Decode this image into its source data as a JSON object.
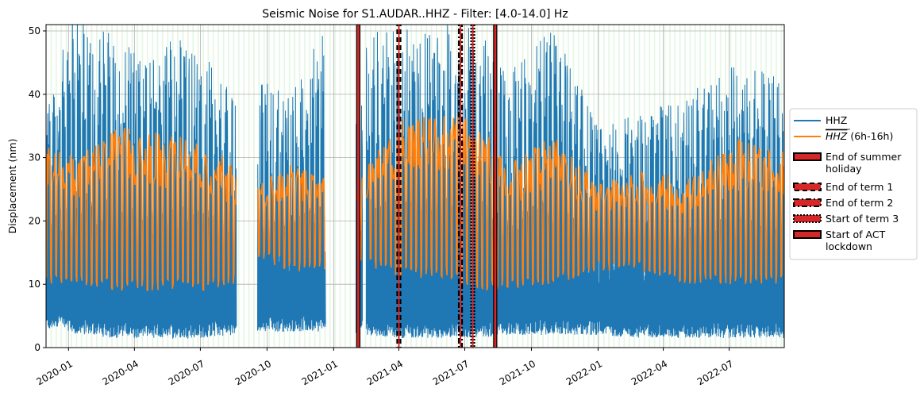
{
  "chart_data": {
    "type": "line",
    "title": "Seismic Noise for S1.AUDAR..HHZ - Filter: [4.0-14.0] Hz",
    "xlabel": "",
    "ylabel": "Displacement (nm)",
    "xlim": [
      "2019-12-01",
      "2022-09-15"
    ],
    "ylim": [
      0,
      51
    ],
    "grid": true,
    "legend_placement": "outside-right",
    "x_ticks": [
      "2020-01",
      "2020-04",
      "2020-07",
      "2020-10",
      "2021-01",
      "2021-04",
      "2021-07",
      "2021-10",
      "2022-01",
      "2022-04",
      "2022-07"
    ],
    "y_ticks": [
      0,
      10,
      20,
      30,
      40,
      50
    ],
    "colors": {
      "hhz": "#1f77b4",
      "hhz_mean": "#ff7f0e",
      "event_fill": "#d62728",
      "event_edge": "#000000",
      "weekend_shade": "#e6f7e6",
      "grid": "#b0b0b0"
    },
    "data_gaps": [
      [
        "2020-08-20",
        "2020-09-18"
      ],
      [
        "2020-12-21",
        "2021-02-01"
      ],
      [
        "2021-02-10",
        "2021-02-15"
      ]
    ],
    "series": [
      {
        "name": "HHZ",
        "kind": "raw",
        "envelope": [
          {
            "date": "2019-12-01",
            "low": 2.5,
            "high": 40
          },
          {
            "date": "2019-12-20",
            "low": 3.5,
            "high": 45
          },
          {
            "date": "2020-01-10",
            "low": 2.0,
            "high": 55
          },
          {
            "date": "2020-02-01",
            "low": 2.0,
            "high": 51
          },
          {
            "date": "2020-03-01",
            "low": 1.5,
            "high": 50
          },
          {
            "date": "2020-04-01",
            "low": 1.5,
            "high": 48
          },
          {
            "date": "2020-05-01",
            "low": 1.5,
            "high": 46
          },
          {
            "date": "2020-06-01",
            "low": 1.5,
            "high": 51
          },
          {
            "date": "2020-07-01",
            "low": 1.5,
            "high": 48
          },
          {
            "date": "2020-08-15",
            "low": 2.0,
            "high": 41
          },
          {
            "date": "2020-09-20",
            "low": 2.5,
            "high": 43
          },
          {
            "date": "2020-11-01",
            "low": 2.5,
            "high": 41
          },
          {
            "date": "2020-12-20",
            "low": 2.5,
            "high": 50
          },
          {
            "date": "2021-02-15",
            "low": 2.0,
            "high": 50
          },
          {
            "date": "2021-04-01",
            "low": 1.5,
            "high": 51
          },
          {
            "date": "2021-06-01",
            "low": 1.5,
            "high": 51
          },
          {
            "date": "2021-07-15",
            "low": 1.5,
            "high": 51
          },
          {
            "date": "2021-09-01",
            "low": 2.0,
            "high": 44
          },
          {
            "date": "2021-11-01",
            "low": 2.0,
            "high": 51
          },
          {
            "date": "2022-01-01",
            "low": 2.0,
            "high": 35
          },
          {
            "date": "2022-03-01",
            "low": 1.5,
            "high": 37
          },
          {
            "date": "2022-05-01",
            "low": 1.5,
            "high": 40
          },
          {
            "date": "2022-07-15",
            "low": 1.5,
            "high": 45
          },
          {
            "date": "2022-09-15",
            "low": 1.5,
            "high": 43
          }
        ]
      },
      {
        "name": "HHZ (6h-16h)",
        "kind": "daily-mean",
        "envelope": [
          {
            "date": "2019-12-01",
            "low": 10,
            "high": 33
          },
          {
            "date": "2020-01-10",
            "low": 10,
            "high": 30
          },
          {
            "date": "2020-03-01",
            "low": 9,
            "high": 35
          },
          {
            "date": "2020-05-01",
            "low": 9,
            "high": 34
          },
          {
            "date": "2020-07-01",
            "low": 9,
            "high": 33
          },
          {
            "date": "2020-08-15",
            "low": 10,
            "high": 29
          },
          {
            "date": "2020-09-20",
            "low": 14,
            "high": 26
          },
          {
            "date": "2020-11-01",
            "low": 12,
            "high": 29
          },
          {
            "date": "2020-12-20",
            "low": 12,
            "high": 27
          },
          {
            "date": "2021-02-15",
            "low": 13,
            "high": 29
          },
          {
            "date": "2021-04-01",
            "low": 11,
            "high": 36
          },
          {
            "date": "2021-06-01",
            "low": 11,
            "high": 37
          },
          {
            "date": "2021-07-15",
            "low": 9,
            "high": 36
          },
          {
            "date": "2021-09-01",
            "low": 9,
            "high": 29
          },
          {
            "date": "2021-11-01",
            "low": 10,
            "high": 34
          },
          {
            "date": "2022-01-01",
            "low": 12,
            "high": 26
          },
          {
            "date": "2022-03-01",
            "low": 12,
            "high": 28
          },
          {
            "date": "2022-05-01",
            "low": 10,
            "high": 27
          },
          {
            "date": "2022-07-15",
            "low": 10,
            "high": 33
          },
          {
            "date": "2022-09-15",
            "low": 10,
            "high": 31
          }
        ]
      }
    ],
    "events": [
      {
        "name": "End of summer holiday",
        "date": "2021-02-04",
        "style": "solid"
      },
      {
        "name": "End of term 1",
        "date": "2021-04-01",
        "style": "dashed"
      },
      {
        "name": "End of term 2",
        "date": "2021-06-25",
        "style": "dashdot"
      },
      {
        "name": "Start of term 3",
        "date": "2021-07-12",
        "style": "dotted"
      },
      {
        "name": "Start of ACT lockdown",
        "date": "2021-08-12",
        "style": "solid"
      }
    ],
    "legend": {
      "entries": [
        {
          "label": "HHZ",
          "lines": [
            "HHZ"
          ],
          "kind": "line",
          "color": "#1f77b4"
        },
        {
          "label": "HHZ (6h-16h)",
          "lines": [
            "HHZ",
            " (6h-16h)"
          ],
          "kind": "line-overline",
          "color": "#ff7f0e"
        },
        {
          "label": "End of summer holiday",
          "lines": [
            "End of summer",
            "holiday"
          ],
          "kind": "patch-solid"
        },
        {
          "label": "End of term 1",
          "lines": [
            "End of term 1"
          ],
          "kind": "patch-dashed"
        },
        {
          "label": "End of term 2",
          "lines": [
            "End of term 2"
          ],
          "kind": "patch-dashdot"
        },
        {
          "label": "Start of term 3",
          "lines": [
            "Start of term 3"
          ],
          "kind": "patch-dotted"
        },
        {
          "label": "Start of ACT lockdown",
          "lines": [
            "Start of ACT",
            "lockdown"
          ],
          "kind": "patch-solid"
        }
      ]
    }
  }
}
